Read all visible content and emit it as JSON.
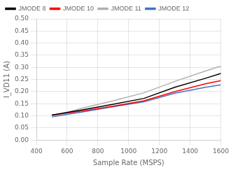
{
  "chart_data": {
    "type": "line",
    "xlabel": "Sample Rate (MSPS)",
    "ylabel": "I_VD11 (A)",
    "x": [
      500,
      700,
      900,
      1100,
      1300,
      1500,
      1600
    ],
    "series": [
      {
        "name": "JMODE 8",
        "color": "#000000",
        "values": [
          0.103,
          0.125,
          0.148,
          0.172,
          0.218,
          0.255,
          0.275
        ]
      },
      {
        "name": "JMODE 10",
        "color": "#ff0000",
        "values": [
          0.103,
          0.12,
          0.14,
          0.162,
          0.2,
          0.232,
          0.245
        ]
      },
      {
        "name": "JMODE 11",
        "color": "#b0b0b0",
        "values": [
          0.098,
          0.132,
          0.162,
          0.195,
          0.242,
          0.285,
          0.305
        ]
      },
      {
        "name": "JMODE 12",
        "color": "#4472c4",
        "values": [
          0.096,
          0.116,
          0.138,
          0.158,
          0.193,
          0.218,
          0.228
        ]
      }
    ],
    "xlim": [
      400,
      1600
    ],
    "xticks": [
      400,
      600,
      800,
      1000,
      1200,
      1400,
      1600
    ],
    "ylim": [
      0,
      0.5
    ],
    "yticks": [
      {
        "value": 0,
        "label": "0.00"
      },
      0.05,
      {
        "value": 0.1,
        "label": "0.10"
      },
      0.15,
      {
        "value": 0.2,
        "label": "0.20"
      },
      0.25,
      {
        "value": 0.3,
        "label": "0.30"
      },
      0.35,
      {
        "value": 0.4,
        "label": "0.40"
      },
      0.45,
      {
        "value": 0.5,
        "label": "0.50"
      }
    ],
    "grid": true,
    "legend": "upper left"
  }
}
